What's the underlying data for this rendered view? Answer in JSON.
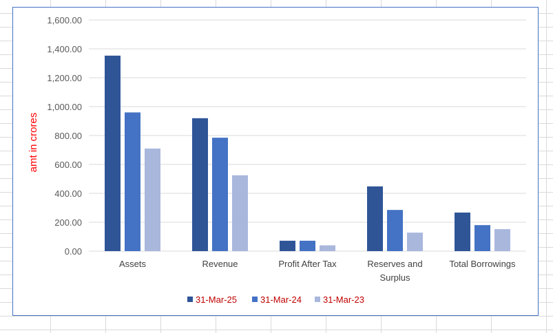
{
  "chart_data": {
    "type": "bar",
    "title": "",
    "xlabel": "",
    "ylabel": "amt in crores",
    "ylim": [
      0,
      1600
    ],
    "yticks": [
      "0.00",
      "200.00",
      "400.00",
      "600.00",
      "800.00",
      "1,000.00",
      "1,200.00",
      "1,400.00",
      "1,600.00"
    ],
    "categories": [
      [
        "Assets"
      ],
      [
        "Revenue"
      ],
      [
        "Profit After Tax"
      ],
      [
        "Reserves and",
        "Surplus"
      ],
      [
        "Total Borrowings"
      ]
    ],
    "series": [
      {
        "name": "31-Mar-25",
        "color": "#2f5597",
        "values": [
          1353,
          920,
          72,
          448,
          267
        ]
      },
      {
        "name": "31-Mar-24",
        "color": "#4472c4",
        "values": [
          960,
          785,
          72,
          285,
          180
        ]
      },
      {
        "name": "31-Mar-23",
        "color": "#a9b7dd",
        "values": [
          710,
          525,
          40,
          128,
          152
        ]
      }
    ],
    "grid": true,
    "legend_position": "bottom",
    "colors": {
      "gridline": "#d9d9d9",
      "axis_label": "#ff0000",
      "legend_text": "#c00000",
      "frame": "#4472c4"
    }
  }
}
